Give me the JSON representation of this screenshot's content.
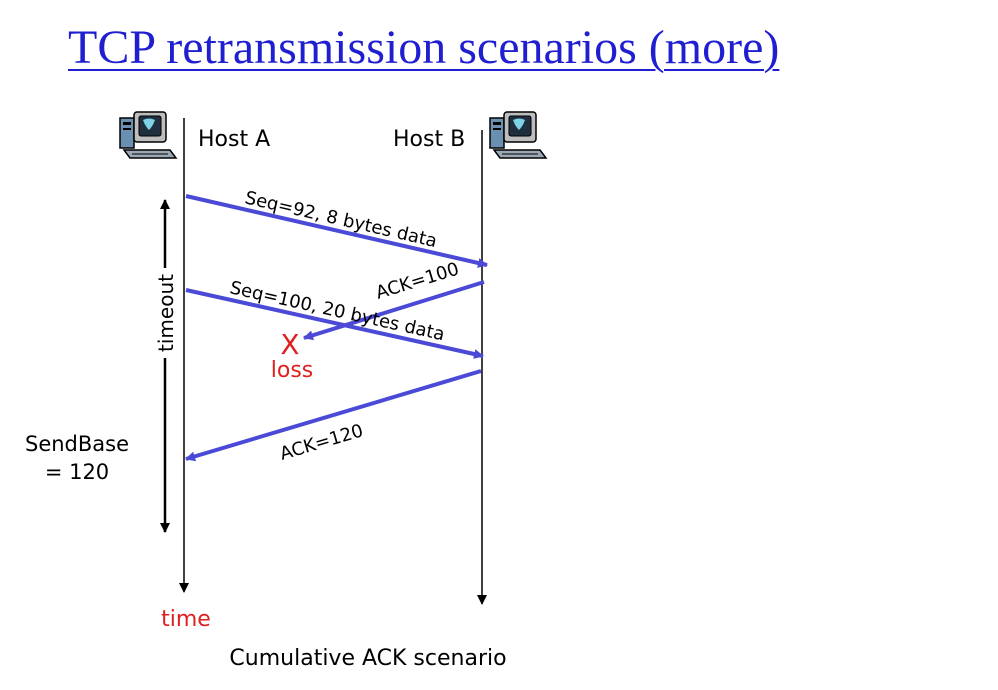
{
  "title": "TCP retransmission scenarios (more)",
  "colors": {
    "title": "#1f1fd1",
    "arrow": "#4a4ad6",
    "loss": "#e02020",
    "line": "#000000"
  },
  "hosts": [
    {
      "label": "Host A",
      "icon": "computer-icon"
    },
    {
      "label": "Host B",
      "icon": "computer-icon"
    }
  ],
  "messages": [
    {
      "label": "Seq=92, 8 bytes data",
      "from": "Host A",
      "to": "Host B"
    },
    {
      "label": "ACK=100",
      "from": "Host B",
      "to": "Host A",
      "lost": true
    },
    {
      "label": "Seq=100, 20 bytes data",
      "from": "Host A",
      "to": "Host B"
    },
    {
      "label": "ACK=120",
      "from": "Host B",
      "to": "Host A"
    }
  ],
  "loss": {
    "mark": "X",
    "label": "loss"
  },
  "timeout_label": "timeout",
  "sendbase": {
    "line1": "SendBase",
    "line2": "= 120"
  },
  "time_label": "time",
  "caption": "Cumulative ACK scenario"
}
